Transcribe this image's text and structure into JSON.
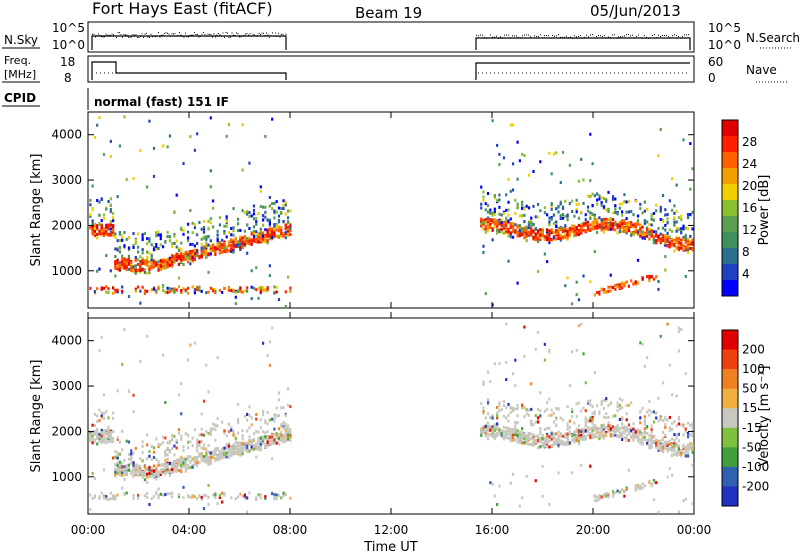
{
  "header": {
    "station": "Fort Hays East (fitACF)",
    "beam": "Beam 19",
    "date": "05/Jun/2013"
  },
  "panels": {
    "nsky": {
      "label": "N.Sky",
      "ticks": [
        "10^5",
        "10^0"
      ]
    },
    "nsearch": {
      "label": "N.Search",
      "ticks": [
        "10^5",
        "10^0"
      ]
    },
    "freq": {
      "label": "Freq.",
      "unit": "[MHz]",
      "ticks": [
        "18",
        "8"
      ]
    },
    "nave": {
      "label": "Nave",
      "ticks": [
        "60",
        "0"
      ]
    },
    "cpid": {
      "label": "CPID",
      "text": "normal (fast) 151 IF"
    }
  },
  "colors": {
    "power": [
      "#0000ff",
      "#2040c0",
      "#2e6f8f",
      "#3f8f5f",
      "#5aa050",
      "#88c030",
      "#f0d000",
      "#f0a000",
      "#ff6000",
      "#ff2000",
      "#e00000"
    ],
    "velocity": [
      "#2030c0",
      "#3060b0",
      "#40a040",
      "#80c040",
      "#c8c8c0",
      "#f0b040",
      "#f08020",
      "#f04010",
      "#e00000"
    ]
  },
  "chart_data": [
    {
      "type": "heatmap",
      "name": "power",
      "ylabel": "Slant Range [km]",
      "xlabel": "Time UT",
      "xlim": [
        "00:00",
        "24:00"
      ],
      "ylim": [
        180,
        4500
      ],
      "x_ticks": [
        "00:00",
        "04:00",
        "08:00",
        "12:00",
        "16:00",
        "20:00",
        "00:00"
      ],
      "y_ticks": [
        "1000",
        "2000",
        "3000",
        "4000"
      ],
      "colorbar": {
        "label": "Power [dB]",
        "ticks": [
          "28",
          "24",
          "20",
          "16",
          "12",
          "8",
          "4"
        ]
      },
      "data_gaps": [
        [
          "08:00",
          "15:30"
        ]
      ]
    },
    {
      "type": "heatmap",
      "name": "velocity",
      "ylabel": "Slant Range [km]",
      "xlabel": "Time UT",
      "xlim": [
        "00:00",
        "24:00"
      ],
      "ylim": [
        180,
        4500
      ],
      "x_ticks": [
        "00:00",
        "04:00",
        "08:00",
        "12:00",
        "16:00",
        "20:00",
        "00:00"
      ],
      "y_ticks": [
        "1000",
        "2000",
        "3000",
        "4000"
      ],
      "colorbar": {
        "label": "Velocity [m s⁻¹]",
        "ticks": [
          "200",
          "100",
          "50",
          "15",
          "-15",
          "-50",
          "-100",
          "-200"
        ]
      },
      "data_gaps": [
        [
          "08:00",
          "15:30"
        ]
      ]
    }
  ]
}
